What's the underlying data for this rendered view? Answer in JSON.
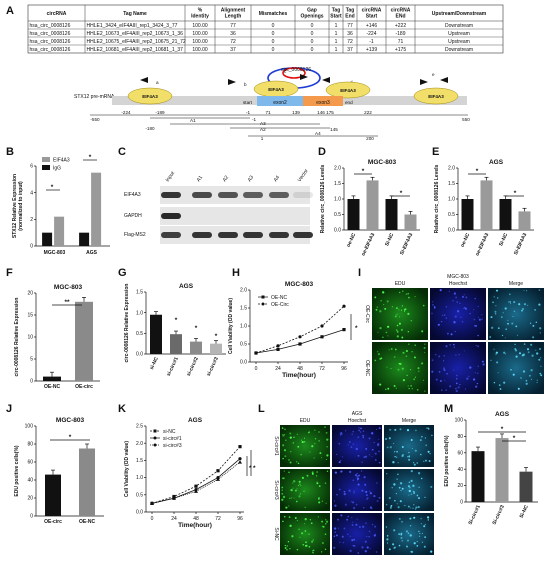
{
  "panel_letters": [
    "A",
    "B",
    "C",
    "D",
    "E",
    "F",
    "G",
    "H",
    "I",
    "J",
    "K",
    "L",
    "M"
  ],
  "table": {
    "headers": [
      "circRNA",
      "Tag Name",
      "%\nIdentity",
      "Alignment\nLength",
      "Mismatches",
      "Gap\nOpenings",
      "Tag\nStart",
      "Tag\nEnd",
      "circRNA\nStart",
      "circRNA\nENd",
      "Upstream/Downstream"
    ],
    "rows": [
      [
        "hsa_circ_0008126",
        "HHLE1_3424_eIF4AIII_rep1_3424_3_77",
        "100.00",
        "77",
        "0",
        "0",
        "1",
        "77",
        "+146",
        "+222",
        "Downstream"
      ],
      [
        "hsa_circ_0008126",
        "HHLE2_10673_eIF4AIII_rep2_10673_1_36",
        "100.00",
        "36",
        "0",
        "0",
        "1",
        "36",
        "-224",
        "-189",
        "Upstream"
      ],
      [
        "hsa_circ_0008126",
        "HHLE2_10675_eIF4AIII_rep2_10675_21_72",
        "100.00",
        "72",
        "0",
        "0",
        "1",
        "72",
        "-1",
        "71",
        "Upstream"
      ],
      [
        "hsa_circ_0008126",
        "HHLE2_10681_eIF4AIII_rep2_10681_1_37",
        "100.00",
        "37",
        "0",
        "0",
        "1",
        "37",
        "+139",
        "+175",
        "Downstream"
      ]
    ]
  },
  "schematic": {
    "circ_label": "circ_0008126",
    "pre_mrna_label": "STX12 pre-mRNA",
    "protein": "EIF4A3",
    "exons": [
      "exon2",
      "exon3"
    ],
    "start": "start",
    "end": "end",
    "primer_letters": [
      "a",
      "b",
      "c",
      "d",
      "e"
    ],
    "positions": [
      "-224",
      "-189",
      "-1",
      "71",
      "139",
      "146",
      "175",
      "222"
    ],
    "ruler": [
      "-550",
      "550"
    ],
    "amplicons": [
      "A1",
      "A2",
      "A3",
      "A4"
    ],
    "amp_coords": [
      "-180",
      "-1",
      "1",
      "145",
      "200"
    ]
  },
  "gel": {
    "lanes": [
      "Input",
      "A1",
      "A2",
      "A3",
      "A4",
      "Vector"
    ],
    "rows": [
      "EIF4A3",
      "GAPDH",
      "Flag-MS2"
    ]
  },
  "images": {
    "I": {
      "cols": [
        "EDU",
        "Hoechst",
        "Merge"
      ],
      "rows": [
        "OE-Circ",
        "OE-NC"
      ],
      "cellline": "MGC-803"
    },
    "L": {
      "cols": [
        "EDU",
        "Hoechst",
        "Merge"
      ],
      "rows": [
        "Si-circ#1",
        "Si-circ#3",
        "Si-NC"
      ],
      "cellline": "AGS"
    }
  },
  "significance": [
    "*",
    "**"
  ],
  "chart_data": [
    {
      "panel": "B",
      "type": "bar",
      "title": "",
      "ylabel": "STX12 Relative Expression\n(normalized to input)",
      "categories": [
        "MGC-803",
        "AGS"
      ],
      "series": [
        {
          "name": "EIF4A3",
          "values": [
            2.2,
            5.5
          ],
          "color": "#9a9a9a"
        },
        {
          "name": "IgG",
          "values": [
            1.0,
            1.0
          ],
          "color": "#111111"
        }
      ],
      "yticks": [
        "0",
        "2",
        "4",
        "6"
      ],
      "ylim": [
        0,
        6
      ],
      "legend": "top-left"
    },
    {
      "panel": "D",
      "type": "bar",
      "title": "MGC-803",
      "ylabel": "Relative circ_0008126 Levels",
      "categories": [
        "oe-NC",
        "oe-EIF4A3",
        "Si-NC",
        "Si-EIF4A3"
      ],
      "values": [
        1.0,
        1.6,
        1.0,
        0.5
      ],
      "colors": [
        "#111111",
        "#9a9a9a",
        "#111111",
        "#9a9a9a"
      ],
      "yticks": [
        "0.0",
        "0.5",
        "1.0",
        "1.5",
        "2.0"
      ],
      "ylim": [
        0,
        2
      ]
    },
    {
      "panel": "E",
      "type": "bar",
      "title": "AGS",
      "ylabel": "Relative circ_0008126 Levels",
      "categories": [
        "oe-NC",
        "oe-EIF4A3",
        "Si-NC",
        "Si-EIF4A3"
      ],
      "values": [
        1.0,
        1.6,
        1.0,
        0.6
      ],
      "colors": [
        "#111111",
        "#9a9a9a",
        "#111111",
        "#9a9a9a"
      ],
      "yticks": [
        "0.0",
        "0.5",
        "1.0",
        "1.5",
        "2.0"
      ],
      "ylim": [
        0,
        2
      ]
    },
    {
      "panel": "F",
      "type": "bar",
      "title": "MGC-803",
      "ylabel": "circ-0008126 Relative Expression",
      "categories": [
        "OE-NC",
        "OE-circ"
      ],
      "values": [
        1,
        18
      ],
      "colors": [
        "#111111",
        "#8a8a8a"
      ],
      "yticks": [
        "0",
        "5",
        "10",
        "15",
        "20"
      ],
      "ylim": [
        0,
        20
      ]
    },
    {
      "panel": "G",
      "type": "bar",
      "title": "AGS",
      "ylabel": "circ-0008126 Relative Expression",
      "categories": [
        "si-NC",
        "si-circ#1",
        "si-circ#2",
        "si-circ#3"
      ],
      "values": [
        0.95,
        0.48,
        0.3,
        0.25
      ],
      "colors": [
        "#111111",
        "#6a6a6a",
        "#8a8a8a",
        "#b5b5b5"
      ],
      "yticks": [
        "0.0",
        "0.5",
        "1.0",
        "1.5"
      ],
      "ylim": [
        0,
        1.5
      ]
    },
    {
      "panel": "H",
      "type": "line",
      "title": "MGC-803",
      "xlabel": "Time(hour)",
      "ylabel": "Cell Viability (OD value)",
      "x": [
        0,
        24,
        48,
        72,
        96
      ],
      "series": [
        {
          "name": "OE-NC",
          "values": [
            0.25,
            0.35,
            0.5,
            0.7,
            0.9
          ]
        },
        {
          "name": "OE-Circ",
          "values": [
            0.25,
            0.45,
            0.7,
            1.0,
            1.55
          ]
        }
      ],
      "xticks": [
        "0",
        "24",
        "48",
        "72",
        "96"
      ],
      "yticks": [
        "0.0",
        "0.5",
        "1.0",
        "1.5",
        "2.0"
      ],
      "ylim": [
        0,
        2
      ]
    },
    {
      "panel": "J",
      "type": "bar",
      "title": "MGC-803",
      "ylabel": "EDU positive cells(%)",
      "categories": [
        "OE-circ",
        "OE-NC"
      ],
      "values": [
        46,
        75
      ],
      "colors": [
        "#111111",
        "#8a8a8a"
      ],
      "yticks": [
        "0",
        "20",
        "40",
        "60",
        "80",
        "100"
      ],
      "ylim": [
        0,
        100
      ]
    },
    {
      "panel": "K",
      "type": "line",
      "title": "AGS",
      "xlabel": "Time(hour)",
      "ylabel": "Cell Viability (OD value)",
      "x": [
        0,
        24,
        48,
        72,
        96
      ],
      "series": [
        {
          "name": "si-NC",
          "values": [
            0.25,
            0.45,
            0.75,
            1.2,
            1.9
          ]
        },
        {
          "name": "si-circ#1",
          "values": [
            0.25,
            0.4,
            0.65,
            1.0,
            1.55
          ]
        },
        {
          "name": "si-circ#3",
          "values": [
            0.25,
            0.4,
            0.6,
            0.95,
            1.45
          ]
        }
      ],
      "xticks": [
        "0",
        "24",
        "48",
        "72",
        "96"
      ],
      "yticks": [
        "0.0",
        "0.5",
        "1.0",
        "1.5",
        "2.0",
        "2.5"
      ],
      "ylim": [
        0,
        2.5
      ]
    },
    {
      "panel": "M",
      "type": "bar",
      "title": "AGS",
      "ylabel": "EDU positive cells(%)",
      "categories": [
        "Si-circ#1",
        "Si-circ#3",
        "Si-NC"
      ],
      "values": [
        62,
        78,
        37
      ],
      "colors": [
        "#111111",
        "#9a9a9a",
        "#444444"
      ],
      "yticks": [
        "0",
        "20",
        "40",
        "60",
        "80",
        "100"
      ],
      "ylim": [
        0,
        100
      ]
    }
  ]
}
